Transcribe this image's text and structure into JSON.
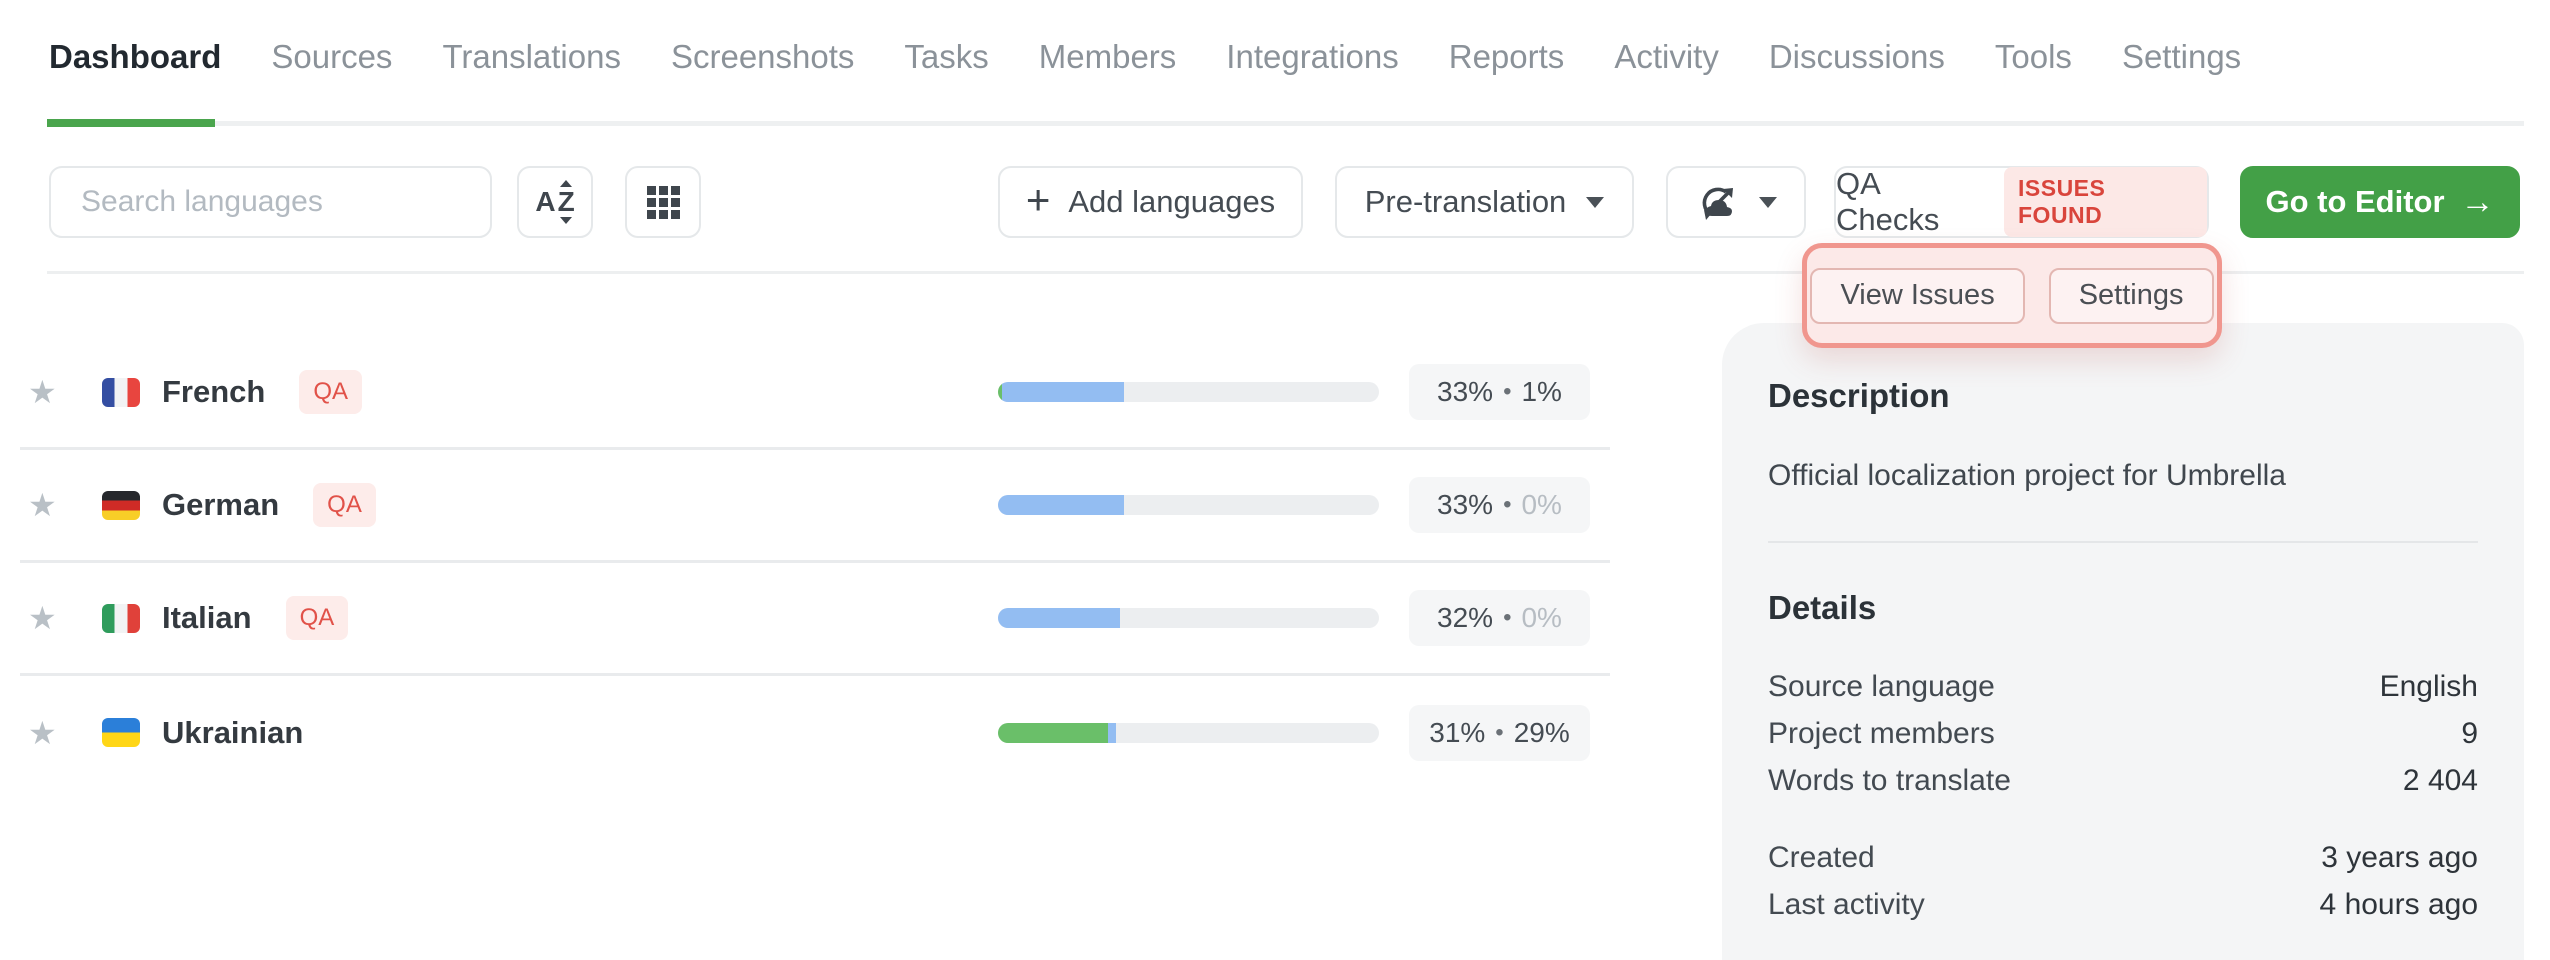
{
  "nav": {
    "active_tab": "Dashboard",
    "items": [
      "Dashboard",
      "Sources",
      "Translations",
      "Screenshots",
      "Tasks",
      "Members",
      "Integrations",
      "Reports",
      "Activity",
      "Discussions",
      "Tools",
      "Settings"
    ]
  },
  "toolbar": {
    "search_placeholder": "Search languages",
    "add_languages_label": "Add languages",
    "pretranslation_label": "Pre-translation",
    "qa_checks_label": "QA Checks",
    "issues_found_label": "ISSUES FOUND",
    "go_to_editor_label": "Go to Editor",
    "go_to_editor_arrow": "→",
    "plus_glyph": "+"
  },
  "qa_popover": {
    "view_issues_label": "View Issues",
    "settings_label": "Settings"
  },
  "ui": {
    "dot": "•",
    "star": "★"
  },
  "languages": [
    {
      "name": "French",
      "qa_label": "QA",
      "translated_percent": 33,
      "approved_percent": 1,
      "translated_label": "33%",
      "approved_label": "1%",
      "approved_muted": false
    },
    {
      "name": "German",
      "qa_label": "QA",
      "translated_percent": 33,
      "approved_percent": 0,
      "translated_label": "33%",
      "approved_label": "0%",
      "approved_muted": true
    },
    {
      "name": "Italian",
      "qa_label": "QA",
      "translated_percent": 32,
      "approved_percent": 0,
      "translated_label": "32%",
      "approved_label": "0%",
      "approved_muted": true
    },
    {
      "name": "Ukrainian",
      "translated_percent": 31,
      "approved_percent": 29,
      "translated_label": "31%",
      "approved_label": "29%",
      "approved_muted": false
    }
  ],
  "sidebar": {
    "description_title": "Description",
    "description_text": "Official localization project for Umbrella",
    "details_title": "Details",
    "details": [
      {
        "label": "Source language",
        "value": "English"
      },
      {
        "label": "Project members",
        "value": "9"
      },
      {
        "label": "Words to translate",
        "value": "2 404"
      }
    ],
    "details2": [
      {
        "label": "Created",
        "value": "3 years ago"
      },
      {
        "label": "Last activity",
        "value": "4 hours ago"
      }
    ]
  },
  "colors": {
    "accent_green": "#43a047",
    "tab_underline_green": "#4aa54d",
    "progress_blue": "#93bdf2",
    "progress_green": "#6abf69",
    "qa_red": "#d9453c",
    "popover_border": "#f0968e"
  }
}
